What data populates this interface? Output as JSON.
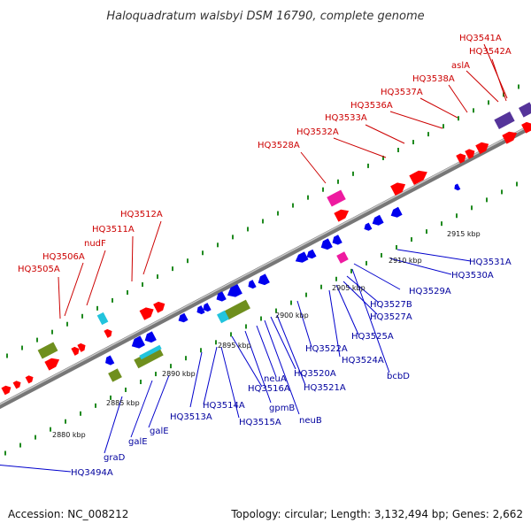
{
  "title": "Haloquadratum walsbyi DSM 16790, complete genome",
  "footer": {
    "accession": "Accession: NC_008212",
    "topology": "Topology: circular; Length: 3,132,494 bp; Genes: 2,662"
  },
  "colors": {
    "backbone": "#8c8c8c",
    "dots": "#1f8a1f",
    "label_top": "#cc0000",
    "label_bottom": "#00009e",
    "red": "#ff0000",
    "blue": "#0000ee",
    "green": "#6f8f1e",
    "cyan": "#22c4dd",
    "magenta": "#ee1aa0",
    "purple": "#55349a",
    "line_top": "#cc0000",
    "line_bottom": "#0000cc"
  },
  "ticks": [
    {
      "label": "2880 kbp"
    },
    {
      "label": "2885 kbp"
    },
    {
      "label": "2890 kbp"
    },
    {
      "label": "2895 kbp"
    },
    {
      "label": "2900 kbp"
    },
    {
      "label": "2905 kbp"
    },
    {
      "label": "2910 kbp"
    },
    {
      "label": "2915 kbp"
    }
  ],
  "genes_top": [
    {
      "label": "HQ3505A"
    },
    {
      "label": "HQ3506A"
    },
    {
      "label": "nudF"
    },
    {
      "label": "HQ3511A"
    },
    {
      "label": "HQ3512A"
    },
    {
      "label": "HQ3528A"
    },
    {
      "label": "HQ3532A"
    },
    {
      "label": "HQ3533A"
    },
    {
      "label": "HQ3536A"
    },
    {
      "label": "HQ3537A"
    },
    {
      "label": "HQ3538A"
    },
    {
      "label": "aslA"
    },
    {
      "label": "HQ3542A"
    },
    {
      "label": "HQ3541A"
    }
  ],
  "genes_bottom": [
    {
      "label": "HQ3494A"
    },
    {
      "label": "graD"
    },
    {
      "label": "galE"
    },
    {
      "label": "galE"
    },
    {
      "label": "HQ3513A"
    },
    {
      "label": "HQ3514A"
    },
    {
      "label": "HQ3515A"
    },
    {
      "label": "HQ3516A"
    },
    {
      "label": "gpmB"
    },
    {
      "label": "neuA"
    },
    {
      "label": "neuB"
    },
    {
      "label": "HQ3520A"
    },
    {
      "label": "HQ3521A"
    },
    {
      "label": "HQ3522A"
    },
    {
      "label": "HQ3524A"
    },
    {
      "label": "HQ3525A"
    },
    {
      "label": "bcbD"
    },
    {
      "label": "HQ3527A"
    },
    {
      "label": "HQ3527B"
    },
    {
      "label": "HQ3529A"
    },
    {
      "label": "HQ3530A"
    },
    {
      "label": "HQ3531A"
    }
  ]
}
